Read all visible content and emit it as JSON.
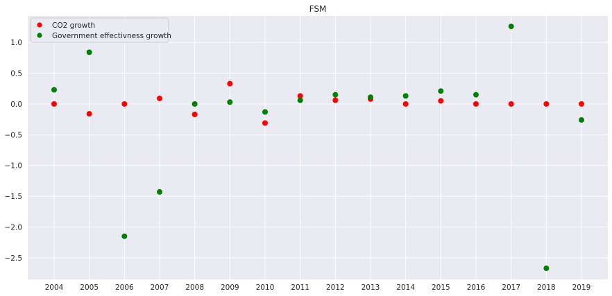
{
  "chart_data": {
    "type": "scatter",
    "title": "FSM",
    "xlabel": "",
    "ylabel": "",
    "x": [
      2004,
      2005,
      2006,
      2007,
      2008,
      2009,
      2010,
      2011,
      2012,
      2013,
      2014,
      2015,
      2016,
      2017,
      2018,
      2019
    ],
    "x_ticks": [
      "2004",
      "2005",
      "2006",
      "2007",
      "2008",
      "2009",
      "2010",
      "2011",
      "2012",
      "2013",
      "2014",
      "2015",
      "2016",
      "2017",
      "2018",
      "2019"
    ],
    "y_ticks": [
      "1.0",
      "0.5",
      "0.0",
      "−0.5",
      "−1.0",
      "−1.5",
      "−2.0",
      "−2.5"
    ],
    "y_tick_values": [
      1.0,
      0.5,
      0.0,
      -0.5,
      -1.0,
      -1.5,
      -2.0,
      -2.5
    ],
    "xlim": [
      2003.25,
      2019.75
    ],
    "ylim": [
      -2.85,
      1.43
    ],
    "grid": true,
    "legend_position": "top-left",
    "series": [
      {
        "name": "CO2 growth",
        "color": "#ff0000",
        "values": [
          0.0,
          -0.16,
          0.0,
          0.09,
          -0.17,
          0.33,
          -0.31,
          0.13,
          0.06,
          0.08,
          0.0,
          0.05,
          0.0,
          0.0,
          0.0,
          0.0
        ]
      },
      {
        "name": "Government effectivness growth",
        "color": "#008000",
        "values": [
          0.23,
          0.84,
          -2.15,
          -1.43,
          0.0,
          0.03,
          -0.13,
          0.06,
          0.15,
          0.11,
          0.13,
          0.21,
          0.15,
          1.26,
          -2.67,
          -0.26
        ]
      }
    ]
  },
  "colors": {
    "plot_background": "#eaeaf2",
    "grid": "#ffffff",
    "text": "#262626"
  }
}
